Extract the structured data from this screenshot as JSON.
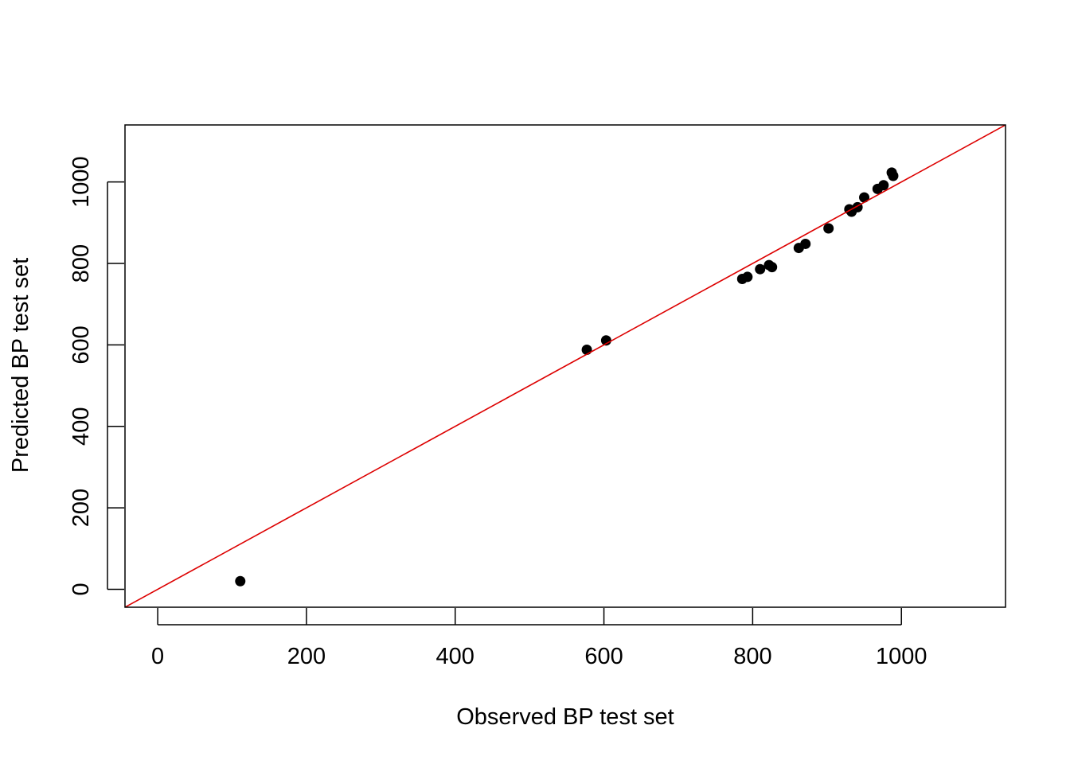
{
  "chart_data": {
    "type": "scatter",
    "title": "",
    "xlabel": "Observed BP test set",
    "ylabel": "Predicted BP test set",
    "xlim": [
      -44,
      1140
    ],
    "ylim": [
      -44,
      1140
    ],
    "x_ticks": [
      0,
      200,
      400,
      600,
      800,
      1000
    ],
    "y_ticks": [
      0,
      200,
      400,
      600,
      800,
      1000
    ],
    "x_tick_labels": [
      "0",
      "200",
      "400",
      "600",
      "800",
      "1000"
    ],
    "y_tick_labels": [
      "0",
      "200",
      "400",
      "600",
      "800",
      "1000"
    ],
    "grid": false,
    "legend": "none",
    "points": [
      {
        "x": 111,
        "y": 20
      },
      {
        "x": 577,
        "y": 588
      },
      {
        "x": 603,
        "y": 611
      },
      {
        "x": 786,
        "y": 762
      },
      {
        "x": 793,
        "y": 767
      },
      {
        "x": 810,
        "y": 786
      },
      {
        "x": 822,
        "y": 796
      },
      {
        "x": 826,
        "y": 791
      },
      {
        "x": 862,
        "y": 838
      },
      {
        "x": 871,
        "y": 848
      },
      {
        "x": 902,
        "y": 886
      },
      {
        "x": 930,
        "y": 933
      },
      {
        "x": 933,
        "y": 927
      },
      {
        "x": 941,
        "y": 938
      },
      {
        "x": 950,
        "y": 962
      },
      {
        "x": 968,
        "y": 983
      },
      {
        "x": 976,
        "y": 992
      },
      {
        "x": 987,
        "y": 1023
      },
      {
        "x": 989,
        "y": 1015
      }
    ],
    "reference_line": {
      "intercept": 0,
      "slope": 1,
      "color": "#dd0000"
    },
    "point_color": "#000000"
  }
}
